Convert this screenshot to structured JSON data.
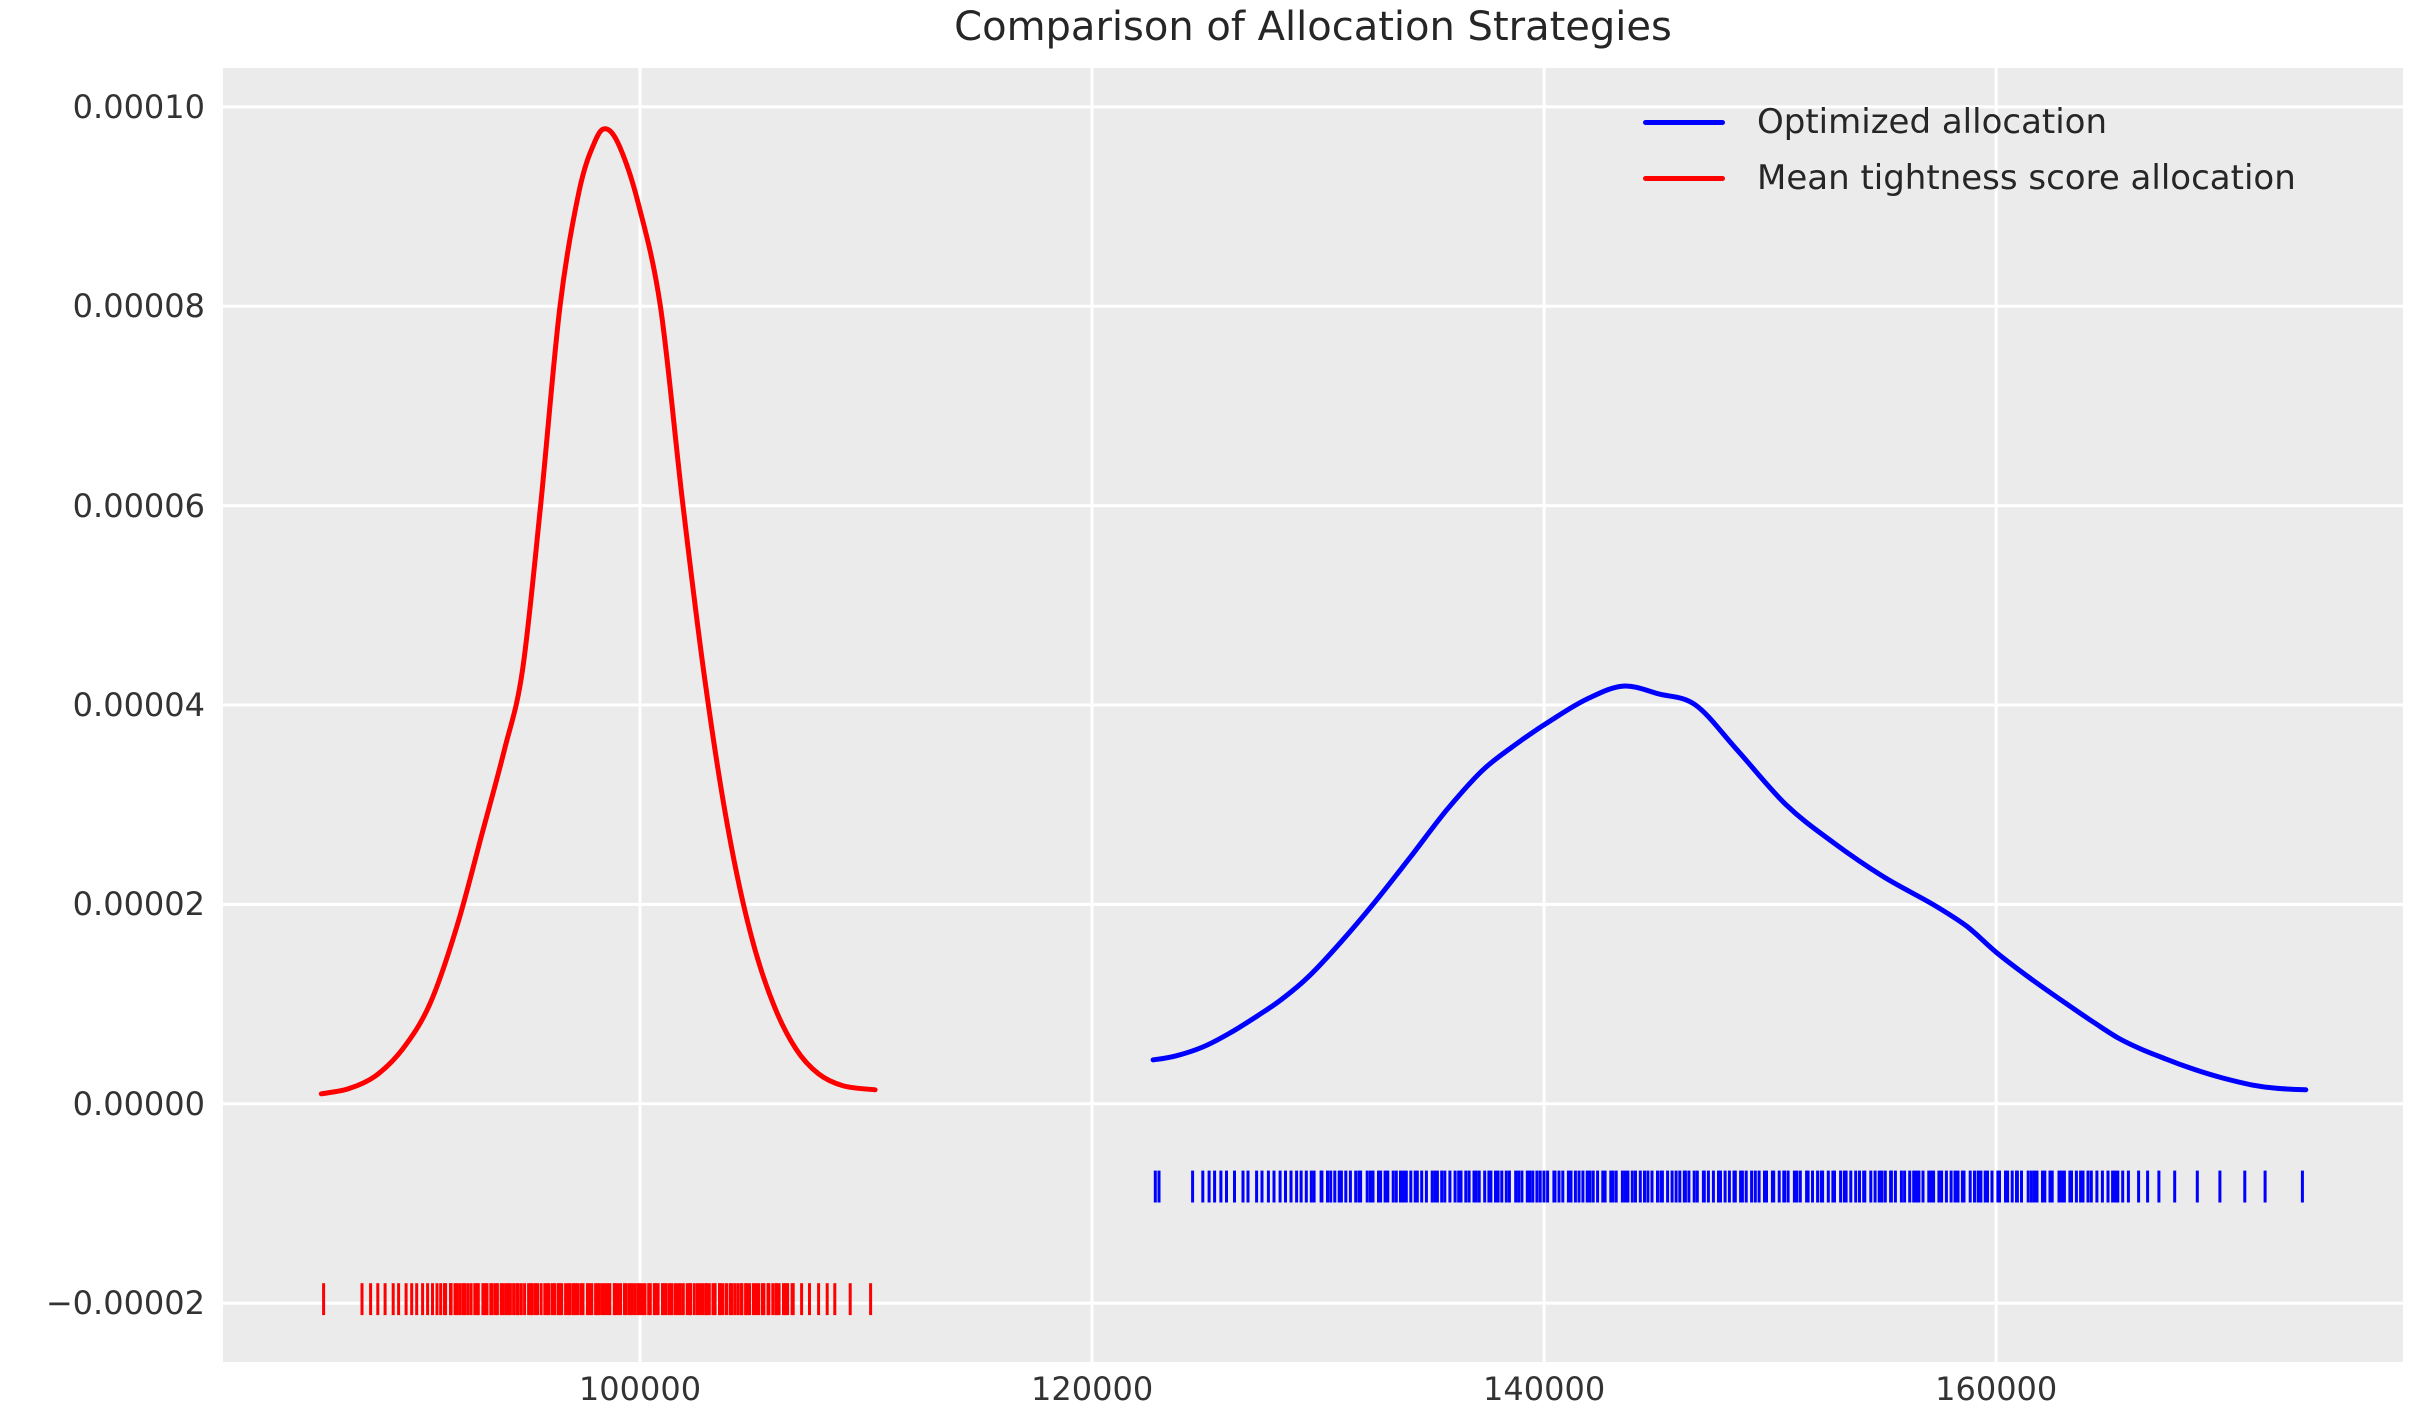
{
  "title": "Comparison of Allocation Strategies",
  "colors": {
    "figure_background": "#ffffff",
    "plot_background": "#ebebeb",
    "gridline": "#ffffff",
    "optimized_blue": "#0000ff",
    "mean_tightness_red": "#ff0000",
    "tick_text": "#333333",
    "title_text": "#262626"
  },
  "legend": {
    "items": [
      {
        "label": "Optimized allocation",
        "color": "#0000ff"
      },
      {
        "label": "Mean tightness score allocation",
        "color": "#ff0000"
      }
    ]
  },
  "chart_data": {
    "type": "line",
    "subtype": "kde-with-rug",
    "title": "Comparison of Allocation Strategies",
    "xlabel": "",
    "ylabel": "",
    "grid": true,
    "legend_position": "upper right",
    "xlim": [
      81550,
      178000
    ],
    "ylim": [
      -2.59e-05,
      0.0001039
    ],
    "x_ticks": [
      100000,
      120000,
      140000,
      160000
    ],
    "x_tick_labels": [
      "100000",
      "120000",
      "140000",
      "160000"
    ],
    "y_ticks": [
      0.0001,
      8e-05,
      6e-05,
      4e-05,
      2e-05,
      0,
      -2e-05
    ],
    "y_tick_labels": [
      "0.00010",
      "0.00008",
      "0.00006",
      "0.00004",
      "0.00002",
      "0.00000",
      "−0.00002"
    ],
    "series": [
      {
        "name": "Optimized allocation",
        "color": "#0000ff",
        "peak": {
          "x": 143500,
          "density": 4.19e-05
        },
        "kde": [
          [
            122700,
            4.4e-06
          ],
          [
            123700,
            4.8e-06
          ],
          [
            124900,
            5.7e-06
          ],
          [
            126100,
            7.1e-06
          ],
          [
            127300,
            8.8e-06
          ],
          [
            128400,
            1.05e-05
          ],
          [
            129600,
            1.28e-05
          ],
          [
            131000,
            1.62e-05
          ],
          [
            132500,
            2.02e-05
          ],
          [
            134100,
            2.48e-05
          ],
          [
            135700,
            2.95e-05
          ],
          [
            137300,
            3.35e-05
          ],
          [
            138900,
            3.63e-05
          ],
          [
            140400,
            3.86e-05
          ],
          [
            141900,
            4.06e-05
          ],
          [
            143500,
            4.19e-05
          ],
          [
            145100,
            4.11e-05
          ],
          [
            146700,
            4e-05
          ],
          [
            148500,
            3.56e-05
          ],
          [
            150700,
            3e-05
          ],
          [
            152800,
            2.62e-05
          ],
          [
            155000,
            2.28e-05
          ],
          [
            157200,
            2e-05
          ],
          [
            158700,
            1.78e-05
          ],
          [
            160000,
            1.52e-05
          ],
          [
            161500,
            1.26e-05
          ],
          [
            163000,
            1.02e-05
          ],
          [
            164300,
            8.2e-06
          ],
          [
            165400,
            6.6e-06
          ],
          [
            166400,
            5.5e-06
          ],
          [
            167500,
            4.5e-06
          ],
          [
            168700,
            3.5e-06
          ],
          [
            170000,
            2.6e-06
          ],
          [
            171300,
            1.9e-06
          ],
          [
            172400,
            1.55e-06
          ],
          [
            173700,
            1.4e-06
          ]
        ],
        "rug": {
          "center": -8.3e-06,
          "half_height": 1.6e-06,
          "ticks": [
            122800,
            122960,
            124450,
            124900,
            125180,
            125420,
            125700,
            125950,
            126300,
            126680,
            126900,
            127280,
            127520,
            127800,
            128050,
            128320,
            128560,
            128800,
            129050,
            129250,
            129480,
            129700,
            164700,
            164950,
            165150,
            165260,
            165380,
            165600,
            165850,
            166300,
            166700,
            167200,
            167900,
            168900,
            169900,
            171000,
            171900,
            173550
          ],
          "dense": {
            "from": 129900,
            "to": 164400,
            "count": 205
          }
        }
      },
      {
        "name": "Mean tightness score allocation",
        "color": "#ff0000",
        "peak": {
          "x": 98500,
          "density": 9.78e-05
        },
        "kde": [
          [
            85900,
            1e-06
          ],
          [
            87100,
            1.5e-06
          ],
          [
            88300,
            2.8e-06
          ],
          [
            89500,
            5.5e-06
          ],
          [
            90700,
            1e-05
          ],
          [
            91900,
            1.78e-05
          ],
          [
            93000,
            2.7e-05
          ],
          [
            94000,
            3.55e-05
          ],
          [
            94800,
            4.35e-05
          ],
          [
            95600,
            6e-05
          ],
          [
            96460,
            8e-05
          ],
          [
            97300,
            9.15e-05
          ],
          [
            98000,
            9.65e-05
          ],
          [
            98500,
            9.78e-05
          ],
          [
            99100,
            9.6e-05
          ],
          [
            99900,
            9.05e-05
          ],
          [
            100900,
            8e-05
          ],
          [
            101900,
            6e-05
          ],
          [
            102900,
            4.2e-05
          ],
          [
            103900,
            2.75e-05
          ],
          [
            104900,
            1.7e-05
          ],
          [
            105900,
            1e-05
          ],
          [
            106900,
            5.5e-06
          ],
          [
            107900,
            3e-06
          ],
          [
            109000,
            1.8e-06
          ],
          [
            110400,
            1.4e-06
          ]
        ],
        "rug": {
          "center": -1.96e-05,
          "half_height": 1.6e-06,
          "ticks": [
            86000,
            87700,
            88080,
            88400,
            88720,
            89080,
            89320,
            89650,
            89900,
            90120,
            90380,
            90600,
            90820,
            91020,
            91180,
            91350,
            107150,
            107500,
            107900,
            108280,
            108620,
            109300,
            110200
          ],
          "dense": {
            "from": 91450,
            "to": 106800,
            "count": 130
          }
        }
      }
    ]
  }
}
